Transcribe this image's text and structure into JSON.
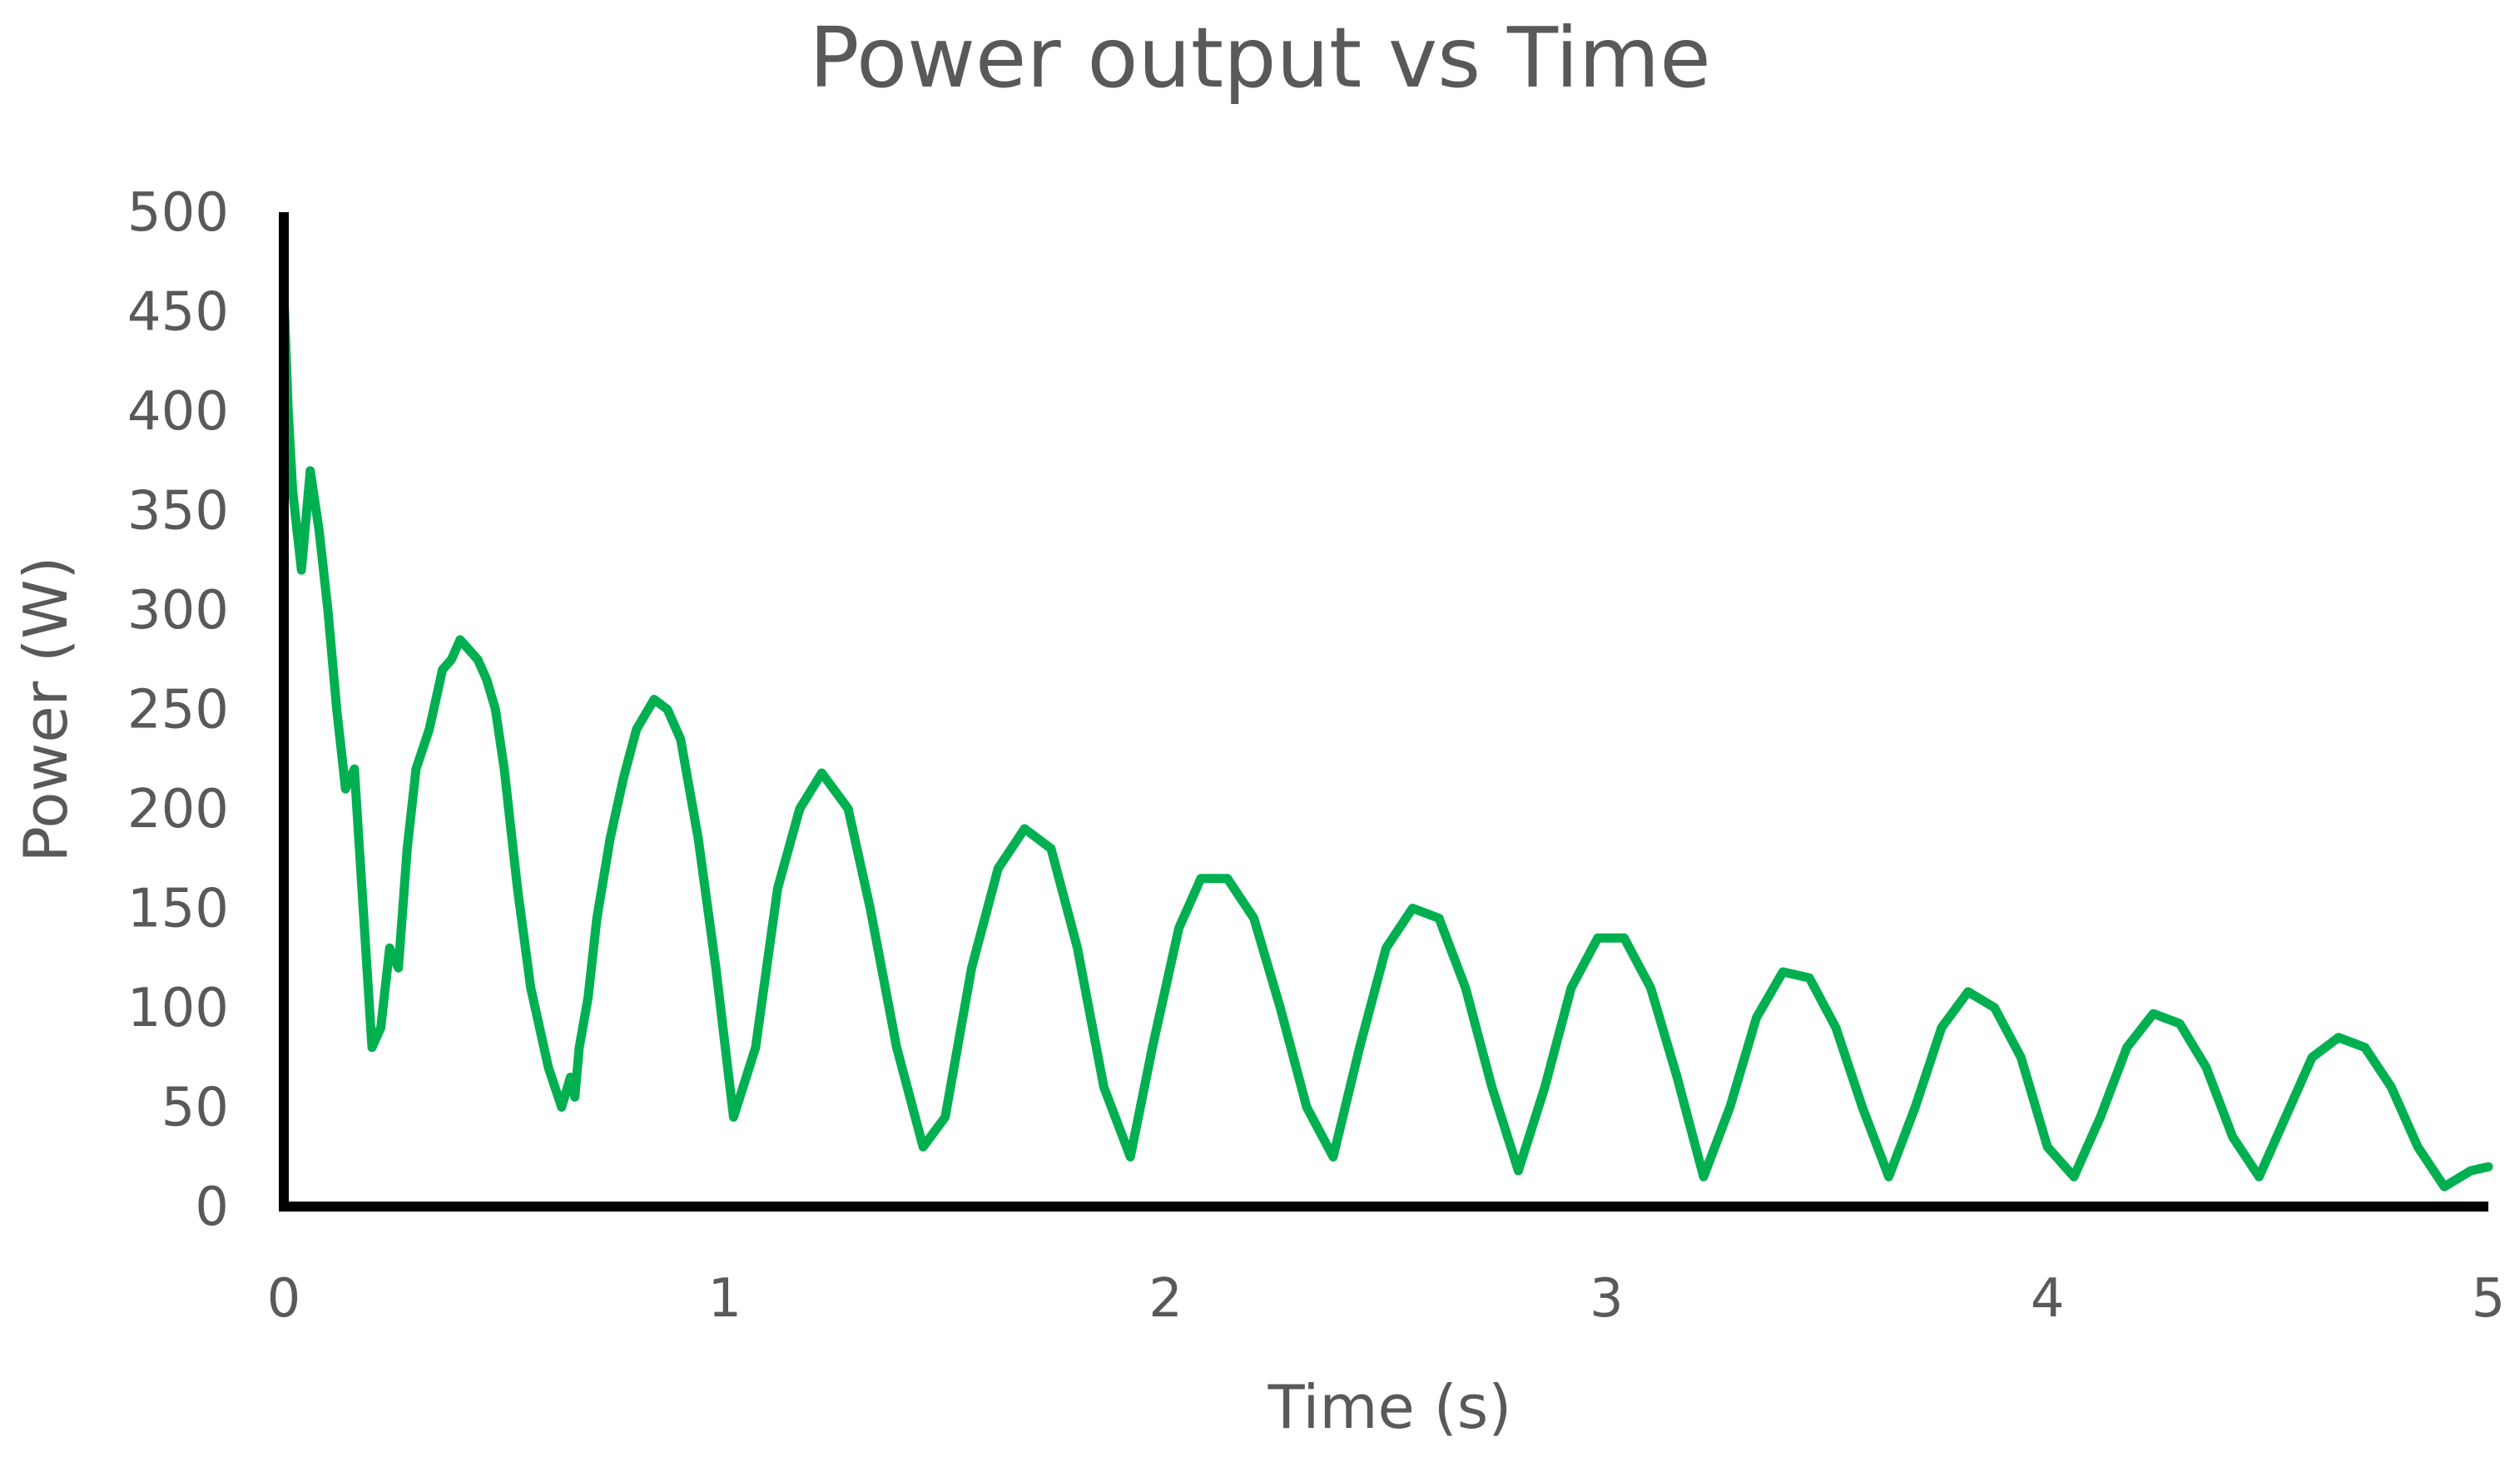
{
  "chart_data": {
    "type": "line",
    "title": "Power output vs Time",
    "xlabel": "Time (s)",
    "ylabel": "Power (W)",
    "xlim": [
      0,
      5
    ],
    "ylim": [
      0,
      500
    ],
    "x_ticks": [
      "0",
      "1",
      "2",
      "3",
      "4",
      "5"
    ],
    "y_ticks": [
      "0",
      "50",
      "100",
      "150",
      "200",
      "250",
      "300",
      "350",
      "400",
      "450",
      "500"
    ],
    "grid": false,
    "legend": "none",
    "line_color": "#00b050",
    "axis_color": "#000000",
    "series": [
      {
        "x": [
          0.0,
          0.01,
          0.02,
          0.04,
          0.06,
          0.08,
          0.1,
          0.12,
          0.14,
          0.16,
          0.18,
          0.2,
          0.22,
          0.24,
          0.26,
          0.28,
          0.3,
          0.33,
          0.36,
          0.38,
          0.4,
          0.42,
          0.44,
          0.46,
          0.48,
          0.5,
          0.53,
          0.56,
          0.58,
          0.6,
          0.63,
          0.65,
          0.66,
          0.67,
          0.69,
          0.71,
          0.74,
          0.77,
          0.8,
          0.84,
          0.87,
          0.9,
          0.94,
          0.98,
          1.02,
          1.07,
          1.12,
          1.17,
          1.22,
          1.28,
          1.33,
          1.39,
          1.45,
          1.5,
          1.56,
          1.62,
          1.68,
          1.74,
          1.8,
          1.86,
          1.92,
          1.97,
          2.03,
          2.08,
          2.14,
          2.2,
          2.26,
          2.32,
          2.38,
          2.44,
          2.5,
          2.56,
          2.62,
          2.68,
          2.74,
          2.8,
          2.86,
          2.92,
          2.98,
          3.04,
          3.1,
          3.16,
          3.22,
          3.28,
          3.34,
          3.4,
          3.46,
          3.52,
          3.58,
          3.64,
          3.7,
          3.76,
          3.82,
          3.88,
          3.94,
          4.0,
          4.06,
          4.12,
          4.18,
          4.24,
          4.3,
          4.36,
          4.42,
          4.48,
          4.54,
          4.6,
          4.66,
          4.72,
          4.78,
          4.84,
          4.9,
          4.96,
          5.0
        ],
        "y": [
          460,
          400,
          360,
          320,
          370,
          340,
          300,
          250,
          210,
          220,
          150,
          80,
          90,
          130,
          120,
          180,
          220,
          240,
          270,
          275,
          285,
          280,
          275,
          265,
          250,
          220,
          160,
          110,
          90,
          70,
          50,
          65,
          55,
          80,
          105,
          145,
          185,
          215,
          240,
          255,
          250,
          235,
          185,
          120,
          45,
          80,
          160,
          200,
          218,
          200,
          150,
          80,
          30,
          45,
          120,
          170,
          190,
          180,
          130,
          60,
          25,
          80,
          140,
          165,
          165,
          145,
          100,
          50,
          25,
          80,
          130,
          150,
          145,
          110,
          60,
          18,
          60,
          110,
          135,
          135,
          110,
          65,
          15,
          50,
          95,
          118,
          115,
          90,
          50,
          15,
          50,
          90,
          108,
          100,
          75,
          30,
          15,
          45,
          80,
          97,
          92,
          70,
          35,
          15,
          45,
          75,
          85,
          80,
          60,
          30,
          10,
          18,
          20
        ]
      }
    ]
  }
}
